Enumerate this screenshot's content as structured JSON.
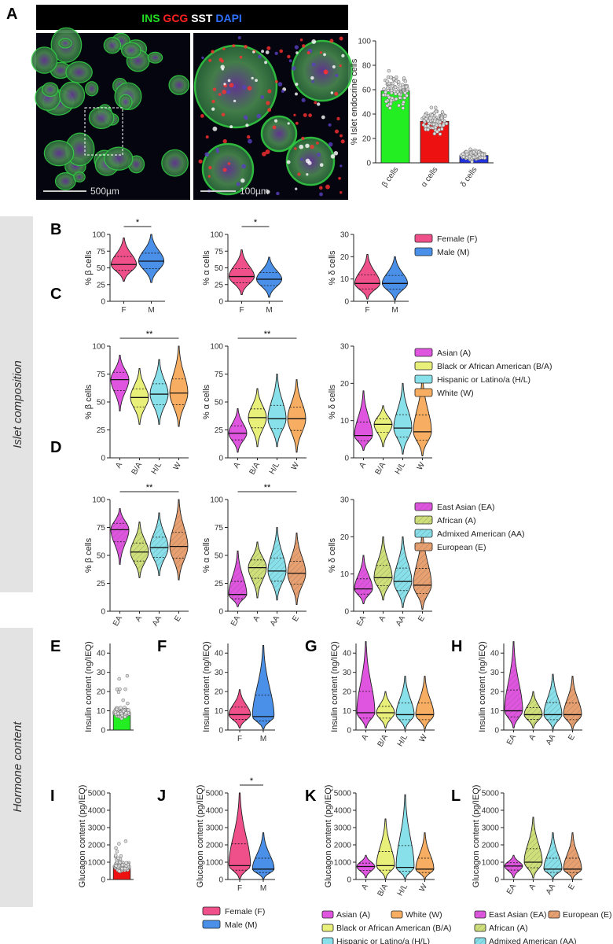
{
  "panels": {
    "A": "A",
    "B": "B",
    "C": "C",
    "D": "D",
    "E": "E",
    "F": "F",
    "G": "G",
    "H": "H",
    "I": "I",
    "J": "J",
    "K": "K",
    "L": "L"
  },
  "side_labels": {
    "islet": "Islet composition",
    "hormone": "Hormone content"
  },
  "micrograph": {
    "stain_labels": [
      {
        "text": "INS",
        "color": "#22dd22"
      },
      {
        "text": "GCG",
        "color": "#ff2020"
      },
      {
        "text": "SST",
        "color": "#ffffff"
      },
      {
        "text": "DAPI",
        "color": "#3070ff"
      }
    ],
    "scale_left": "500µm",
    "scale_right": "100µm"
  },
  "chart_data": [
    {
      "id": "A-bar",
      "type": "bar",
      "ylabel": "% Islet endocrine cells",
      "ylim": [
        0,
        100
      ],
      "yticks": [
        0,
        20,
        40,
        60,
        80,
        100
      ],
      "categories": [
        "β cells",
        "α cells",
        "δ cells"
      ],
      "values": [
        59,
        34,
        6
      ],
      "colors": [
        "#22ee22",
        "#ee1111",
        "#2233dd"
      ]
    },
    {
      "id": "B",
      "type": "violin",
      "ylabel": "% β cells",
      "ylim": [
        0,
        100
      ],
      "yticks": [
        0,
        25,
        50,
        75,
        100
      ],
      "categories": [
        "F",
        "M"
      ],
      "median": [
        55,
        60
      ],
      "min": [
        30,
        28
      ],
      "max": [
        95,
        100
      ],
      "sig": "*"
    },
    {
      "id": "B2",
      "type": "violin",
      "ylabel": "% α cells",
      "ylim": [
        0,
        100
      ],
      "yticks": [
        0,
        25,
        50,
        75,
        100
      ],
      "categories": [
        "F",
        "M"
      ],
      "median": [
        37,
        33
      ],
      "min": [
        10,
        6
      ],
      "max": [
        77,
        66
      ],
      "sig": "*"
    },
    {
      "id": "B3",
      "type": "violin",
      "ylabel": "% δ cells",
      "ylim": [
        0,
        30
      ],
      "yticks": [
        0,
        10,
        20,
        30
      ],
      "categories": [
        "F",
        "M"
      ],
      "median": [
        8,
        8
      ],
      "min": [
        1,
        0.5
      ],
      "max": [
        21,
        20
      ],
      "sig": ""
    },
    {
      "id": "C",
      "type": "violin",
      "ylabel": "% β cells",
      "ylim": [
        0,
        100
      ],
      "yticks": [
        0,
        25,
        50,
        75,
        100
      ],
      "categories": [
        "A",
        "B/A",
        "H/L",
        "W"
      ],
      "median": [
        70,
        54,
        57,
        58
      ],
      "min": [
        42,
        30,
        30,
        28
      ],
      "max": [
        92,
        80,
        88,
        100
      ],
      "sig": "**"
    },
    {
      "id": "C2",
      "type": "violin",
      "ylabel": "% α cells",
      "ylim": [
        0,
        100
      ],
      "yticks": [
        0,
        25,
        50,
        75,
        100
      ],
      "categories": [
        "A",
        "B/A",
        "H/L",
        "W"
      ],
      "median": [
        22,
        36,
        35,
        35
      ],
      "min": [
        5,
        10,
        10,
        5
      ],
      "max": [
        44,
        62,
        75,
        70
      ],
      "sig": "**"
    },
    {
      "id": "C3",
      "type": "violin",
      "ylabel": "% δ cells",
      "ylim": [
        0,
        30
      ],
      "yticks": [
        0,
        10,
        20,
        30
      ],
      "categories": [
        "A",
        "B/A",
        "H/L",
        "W"
      ],
      "median": [
        6,
        9,
        8,
        7
      ],
      "min": [
        2,
        3,
        1,
        0.5
      ],
      "max": [
        18,
        14,
        20,
        22
      ],
      "sig": ""
    },
    {
      "id": "D",
      "type": "violin",
      "ylabel": "% β cells",
      "ylim": [
        0,
        100
      ],
      "yticks": [
        0,
        25,
        50,
        75,
        100
      ],
      "categories": [
        "EA",
        "A",
        "AA",
        "E"
      ],
      "median": [
        73,
        53,
        57,
        58
      ],
      "min": [
        42,
        30,
        32,
        28
      ],
      "max": [
        92,
        80,
        88,
        100
      ],
      "sig": "**"
    },
    {
      "id": "D2",
      "type": "violin",
      "ylabel": "% α cells",
      "ylim": [
        0,
        100
      ],
      "yticks": [
        0,
        25,
        50,
        75,
        100
      ],
      "categories": [
        "EA",
        "A",
        "AA",
        "E"
      ],
      "median": [
        15,
        39,
        36,
        34
      ],
      "min": [
        4,
        12,
        10,
        6
      ],
      "max": [
        54,
        62,
        75,
        70
      ],
      "sig": "**"
    },
    {
      "id": "D3",
      "type": "violin",
      "ylabel": "% δ cells",
      "ylim": [
        0,
        30
      ],
      "yticks": [
        0,
        10,
        20,
        30
      ],
      "categories": [
        "EA",
        "A",
        "AA",
        "E"
      ],
      "median": [
        6,
        9,
        8,
        7
      ],
      "min": [
        2,
        3,
        1,
        0.5
      ],
      "max": [
        15,
        20,
        20,
        22
      ],
      "sig": ""
    },
    {
      "id": "E",
      "type": "bar",
      "ylabel": "Insulin content (ng/IEQ)",
      "ylim": [
        0,
        45
      ],
      "yticks": [
        0,
        10,
        20,
        30,
        40
      ],
      "categories": [
        ""
      ],
      "values": [
        9
      ],
      "colors": [
        "#22ee22"
      ]
    },
    {
      "id": "F",
      "type": "violin",
      "ylabel": "Insulin content (ng/IEQ)",
      "ylim": [
        0,
        45
      ],
      "yticks": [
        0,
        10,
        20,
        30,
        40
      ],
      "categories": [
        "F",
        "M"
      ],
      "median": [
        8,
        7
      ],
      "min": [
        1,
        0.5
      ],
      "max": [
        21,
        44
      ],
      "sig": ""
    },
    {
      "id": "G",
      "type": "violin",
      "ylabel": "Insulin content (ng/IEQ)",
      "ylim": [
        0,
        45
      ],
      "yticks": [
        0,
        10,
        20,
        30,
        40
      ],
      "categories": [
        "A",
        "B/A",
        "H/L",
        "W"
      ],
      "median": [
        9,
        9,
        8,
        8
      ],
      "min": [
        1,
        1,
        0.5,
        0.5
      ],
      "max": [
        46,
        20,
        28,
        28
      ],
      "sig": ""
    },
    {
      "id": "H",
      "type": "violin",
      "ylabel": "Insulin content (ng/IEQ)",
      "ylim": [
        0,
        45
      ],
      "yticks": [
        0,
        10,
        20,
        30,
        40
      ],
      "categories": [
        "EA",
        "A",
        "AA",
        "E"
      ],
      "median": [
        10,
        8,
        8,
        8
      ],
      "min": [
        1,
        1,
        0.5,
        0.5
      ],
      "max": [
        46,
        20,
        29,
        28
      ],
      "sig": ""
    },
    {
      "id": "I",
      "type": "bar",
      "ylabel": "Glucagon content (pg/IEQ)",
      "ylim": [
        0,
        5000
      ],
      "yticks": [
        0,
        1000,
        2000,
        3000,
        4000,
        5000
      ],
      "categories": [
        ""
      ],
      "values": [
        750
      ],
      "colors": [
        "#ee1111"
      ]
    },
    {
      "id": "J",
      "type": "violin",
      "ylabel": "Glucagon content (pg/IEQ)",
      "ylim": [
        0,
        5000
      ],
      "yticks": [
        0,
        1000,
        2000,
        3000,
        4000,
        5000
      ],
      "categories": [
        "F",
        "M"
      ],
      "median": [
        800,
        600
      ],
      "min": [
        50,
        30
      ],
      "max": [
        5000,
        2700
      ],
      "sig": "*"
    },
    {
      "id": "K",
      "type": "violin",
      "ylabel": "Glucagon content (pg/IEQ)",
      "ylim": [
        0,
        5000
      ],
      "yticks": [
        0,
        1000,
        2000,
        3000,
        4000,
        5000
      ],
      "categories": [
        "A",
        "B/A",
        "H/L",
        "W"
      ],
      "median": [
        750,
        800,
        700,
        600
      ],
      "min": [
        100,
        50,
        50,
        30
      ],
      "max": [
        1400,
        3500,
        4900,
        2700
      ],
      "sig": ""
    },
    {
      "id": "L",
      "type": "violin",
      "ylabel": "Glucagon content (pg/IEQ)",
      "ylim": [
        0,
        5000
      ],
      "yticks": [
        0,
        1000,
        2000,
        3000,
        4000,
        5000
      ],
      "categories": [
        "EA",
        "A",
        "AA",
        "E"
      ],
      "median": [
        780,
        1000,
        600,
        600
      ],
      "min": [
        100,
        80,
        50,
        30
      ],
      "max": [
        1400,
        3600,
        2700,
        2700
      ],
      "sig": ""
    }
  ],
  "legends": {
    "sex": [
      {
        "text": "Female (F)",
        "color": "#f0508a",
        "hatch": false
      },
      {
        "text": "Male (M)",
        "color": "#4a8fe8",
        "hatch": false
      }
    ],
    "race": [
      {
        "text": "Asian (A)",
        "color": "#e055e0",
        "hatch": false
      },
      {
        "text": "Black or African  American (B/A)",
        "color": "#e8f07a",
        "hatch": false
      },
      {
        "text": "Hispanic or Latino/a (H/L)",
        "color": "#88e0ea",
        "hatch": false
      },
      {
        "text": "White (W)",
        "color": "#f7ae62",
        "hatch": false
      }
    ],
    "ancestry": [
      {
        "text": "East Asian (EA)",
        "color": "#e055e0",
        "hatch": true
      },
      {
        "text": "African (A)",
        "color": "#cfe07a",
        "hatch": true
      },
      {
        "text": "Admixed American (AA)",
        "color": "#88e0ea",
        "hatch": true
      },
      {
        "text": "European (E)",
        "color": "#e8a070",
        "hatch": true
      }
    ],
    "race_bottom": [
      {
        "text": "Asian (A)",
        "color": "#e055e0"
      },
      {
        "text": "White (W)",
        "color": "#f7ae62"
      },
      {
        "text": "Black or African  American (B/A)",
        "color": "#e8f07a"
      },
      {
        "text": "Hispanic or Latino/a (H/L)",
        "color": "#88e0ea"
      }
    ],
    "ancestry_bottom": [
      {
        "text": "East Asian (EA)",
        "color": "#e055e0"
      },
      {
        "text": "European (E)",
        "color": "#e8a070"
      },
      {
        "text": "African (A)",
        "color": "#cfe07a"
      },
      {
        "text": "Admixed American (AA)",
        "color": "#88e0ea"
      }
    ]
  }
}
